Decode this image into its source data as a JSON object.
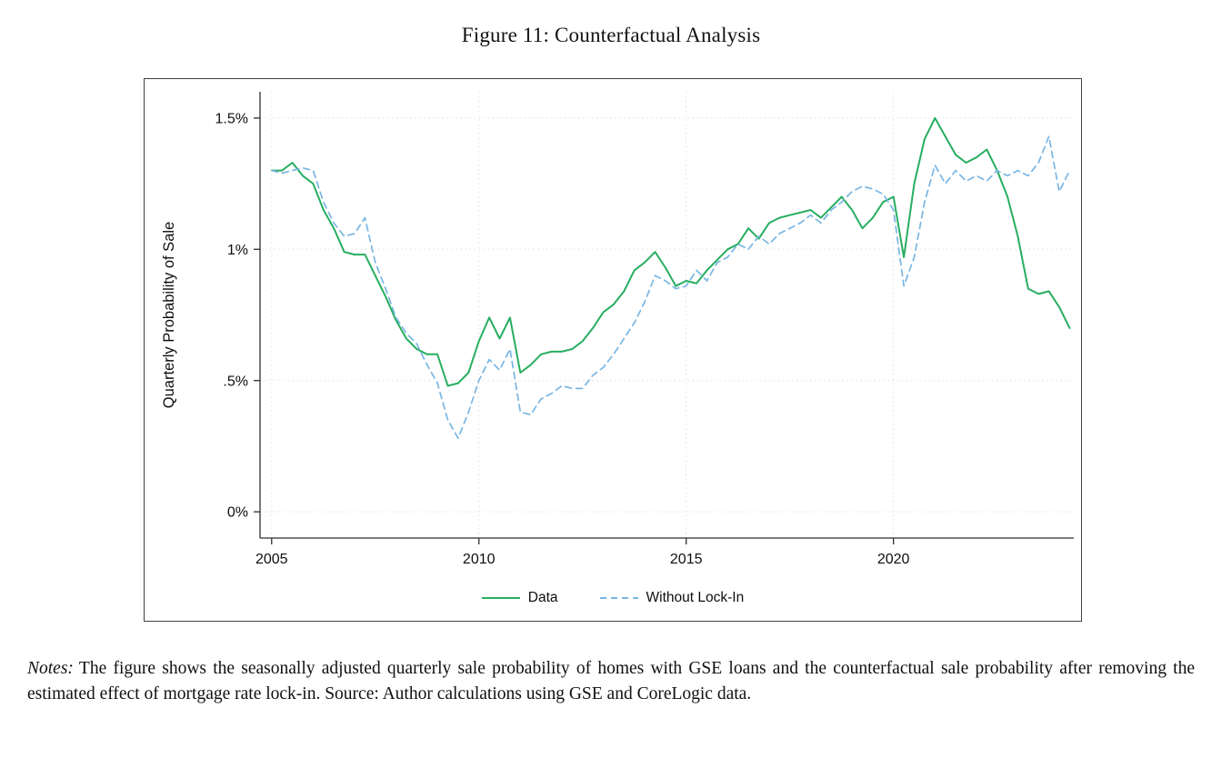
{
  "figure": {
    "title": "Figure 11: Counterfactual Analysis",
    "notes_label": "Notes:",
    "notes_text": "The figure shows the seasonally adjusted quarterly sale probability of homes with GSE loans and the counterfactual sale probability after removing the estimated effect of mortgage rate lock-in. Source: Author calculations using GSE and CoreLogic data."
  },
  "chart_data": {
    "type": "line",
    "title": "",
    "xlabel": "",
    "ylabel": "Quarterly Probability of Sale",
    "x_unit": "year (quarterly observations)",
    "x_tick_values": [
      2005,
      2010,
      2015,
      2020
    ],
    "x_tick_labels": [
      "2005",
      "2010",
      "2015",
      "2020"
    ],
    "y_ticks": [
      {
        "value": 0,
        "label": "0%"
      },
      {
        "value": 0.5,
        "label": ".5%"
      },
      {
        "value": 1,
        "label": "1%"
      },
      {
        "value": 1.5,
        "label": "1.5%"
      }
    ],
    "xlim": [
      2004.72,
      2024.35
    ],
    "ylim": [
      -0.1,
      1.6
    ],
    "grid": true,
    "legend_position": "bottom",
    "x": [
      2005,
      2005.25,
      2005.5,
      2005.75,
      2006,
      2006.25,
      2006.5,
      2006.75,
      2007,
      2007.25,
      2007.5,
      2007.75,
      2008,
      2008.25,
      2008.5,
      2008.75,
      2009,
      2009.25,
      2009.5,
      2009.75,
      2010,
      2010.25,
      2010.5,
      2010.75,
      2011,
      2011.25,
      2011.5,
      2011.75,
      2012,
      2012.25,
      2012.5,
      2012.75,
      2013,
      2013.25,
      2013.5,
      2013.75,
      2014,
      2014.25,
      2014.5,
      2014.75,
      2015,
      2015.25,
      2015.5,
      2015.75,
      2016,
      2016.25,
      2016.5,
      2016.75,
      2017,
      2017.25,
      2017.5,
      2017.75,
      2018,
      2018.25,
      2018.5,
      2018.75,
      2019,
      2019.25,
      2019.5,
      2019.75,
      2020,
      2020.25,
      2020.5,
      2020.75,
      2021,
      2021.25,
      2021.5,
      2021.75,
      2022,
      2022.25,
      2022.5,
      2022.75,
      2023,
      2023.25,
      2023.5,
      2023.75,
      2024,
      2024.25
    ],
    "series": [
      {
        "name": "Data",
        "color": "#27ae60",
        "line_style": "solid",
        "values": [
          1.3,
          1.3,
          1.33,
          1.28,
          1.25,
          1.15,
          1.08,
          0.99,
          0.98,
          0.98,
          0.9,
          0.82,
          0.73,
          0.66,
          0.62,
          0.6,
          0.6,
          0.48,
          0.49,
          0.53,
          0.65,
          0.74,
          0.66,
          0.74,
          0.53,
          0.56,
          0.6,
          0.61,
          0.61,
          0.62,
          0.65,
          0.7,
          0.76,
          0.79,
          0.84,
          0.92,
          0.95,
          0.99,
          0.93,
          0.86,
          0.88,
          0.87,
          0.92,
          0.96,
          1.0,
          1.02,
          1.08,
          1.04,
          1.1,
          1.12,
          1.13,
          1.14,
          1.15,
          1.12,
          1.16,
          1.2,
          1.15,
          1.08,
          1.12,
          1.18,
          1.2,
          0.97,
          1.25,
          1.42,
          1.5,
          1.43,
          1.36,
          1.33,
          1.35,
          1.38,
          1.3,
          1.2,
          1.05,
          0.85,
          0.83,
          0.84,
          0.78,
          0.7
        ]
      },
      {
        "name": "Without Lock-In",
        "color": "#79b6e3",
        "line_style": "dashed",
        "values": [
          1.3,
          1.29,
          1.3,
          1.31,
          1.3,
          1.18,
          1.1,
          1.05,
          1.06,
          1.12,
          0.95,
          0.85,
          0.74,
          0.68,
          0.64,
          0.56,
          0.49,
          0.35,
          0.28,
          0.38,
          0.5,
          0.58,
          0.54,
          0.62,
          0.38,
          0.37,
          0.43,
          0.45,
          0.48,
          0.47,
          0.47,
          0.52,
          0.55,
          0.6,
          0.66,
          0.72,
          0.8,
          0.9,
          0.88,
          0.85,
          0.86,
          0.92,
          0.88,
          0.95,
          0.97,
          1.02,
          1.0,
          1.05,
          1.02,
          1.06,
          1.08,
          1.1,
          1.13,
          1.1,
          1.15,
          1.18,
          1.22,
          1.24,
          1.23,
          1.21,
          1.15,
          0.86,
          0.97,
          1.18,
          1.32,
          1.25,
          1.3,
          1.26,
          1.28,
          1.26,
          1.3,
          1.28,
          1.3,
          1.28,
          1.33,
          1.43,
          1.22,
          1.3
        ]
      }
    ]
  }
}
